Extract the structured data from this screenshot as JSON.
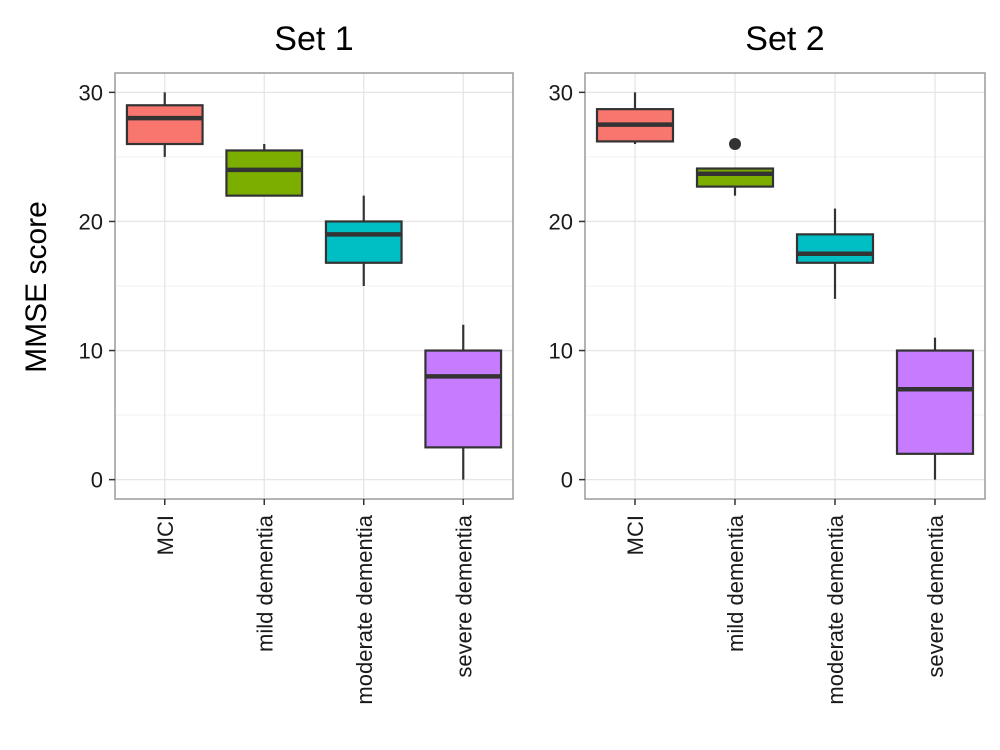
{
  "chart_data": {
    "type": "boxplot",
    "ylabel": "MMSE score",
    "ylim": [
      -1.5,
      31.5
    ],
    "yticks": [
      0,
      10,
      20,
      30
    ],
    "grid": true,
    "legend": "none",
    "categories": [
      "MCI",
      "mild dementia",
      "moderate dementia",
      "severe dementia"
    ],
    "colors": [
      "#f8766d",
      "#7cae00",
      "#00bfc4",
      "#c77cff"
    ],
    "panels": [
      {
        "title": "Set 1",
        "boxes": [
          {
            "category": "MCI",
            "min": 25,
            "q1": 26,
            "median": 28,
            "q3": 29,
            "max": 30,
            "outliers": []
          },
          {
            "category": "mild dementia",
            "min": 22,
            "q1": 22,
            "median": 24,
            "q3": 25.5,
            "max": 26,
            "outliers": []
          },
          {
            "category": "moderate dementia",
            "min": 15,
            "q1": 16.8,
            "median": 19,
            "q3": 20,
            "max": 22,
            "outliers": []
          },
          {
            "category": "severe dementia",
            "min": 0,
            "q1": 2.5,
            "median": 8,
            "q3": 10,
            "max": 12,
            "outliers": []
          }
        ]
      },
      {
        "title": "Set 2",
        "boxes": [
          {
            "category": "MCI",
            "min": 26,
            "q1": 26.2,
            "median": 27.5,
            "q3": 28.7,
            "max": 30,
            "outliers": []
          },
          {
            "category": "mild dementia",
            "min": 22,
            "q1": 22.7,
            "median": 23.7,
            "q3": 24.1,
            "max": 24.1,
            "outliers": [
              26
            ]
          },
          {
            "category": "moderate dementia",
            "min": 14,
            "q1": 16.8,
            "median": 17.5,
            "q3": 19,
            "max": 21,
            "outliers": []
          },
          {
            "category": "severe dementia",
            "min": 0,
            "q1": 2,
            "median": 7,
            "q3": 10,
            "max": 11,
            "outliers": []
          }
        ]
      }
    ]
  }
}
